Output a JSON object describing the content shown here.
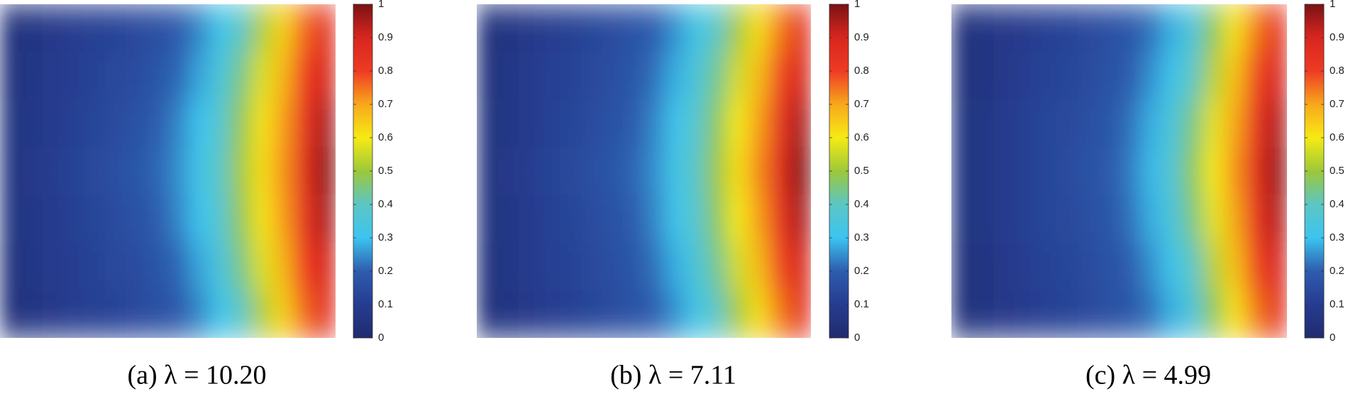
{
  "chart_data": [
    {
      "type": "heatmap",
      "caption": "(a) λ = 10.20",
      "values": [
        [
          0.04,
          0.06,
          0.08,
          0.1,
          0.11,
          0.12,
          0.14,
          0.16,
          0.19,
          0.24,
          0.31,
          0.4,
          0.52,
          0.64,
          0.76,
          0.85
        ],
        [
          0.04,
          0.07,
          0.09,
          0.1,
          0.12,
          0.14,
          0.15,
          0.18,
          0.21,
          0.27,
          0.35,
          0.45,
          0.57,
          0.68,
          0.8,
          0.9
        ],
        [
          0.05,
          0.07,
          0.09,
          0.11,
          0.13,
          0.15,
          0.17,
          0.2,
          0.24,
          0.3,
          0.38,
          0.49,
          0.61,
          0.71,
          0.83,
          0.95
        ],
        [
          0.05,
          0.08,
          0.1,
          0.12,
          0.14,
          0.16,
          0.18,
          0.21,
          0.25,
          0.32,
          0.4,
          0.51,
          0.62,
          0.72,
          0.85,
          0.98
        ],
        [
          0.05,
          0.07,
          0.09,
          0.11,
          0.13,
          0.15,
          0.17,
          0.2,
          0.24,
          0.3,
          0.38,
          0.49,
          0.61,
          0.71,
          0.83,
          0.95
        ],
        [
          0.04,
          0.07,
          0.09,
          0.1,
          0.12,
          0.14,
          0.15,
          0.18,
          0.21,
          0.27,
          0.35,
          0.45,
          0.57,
          0.68,
          0.8,
          0.9
        ],
        [
          0.04,
          0.06,
          0.08,
          0.1,
          0.11,
          0.12,
          0.14,
          0.16,
          0.19,
          0.24,
          0.31,
          0.4,
          0.52,
          0.64,
          0.76,
          0.85
        ]
      ],
      "clim": [
        0,
        1
      ],
      "cticks": [
        0,
        0.1,
        0.2,
        0.3,
        0.4,
        0.5,
        0.6,
        0.7,
        0.8,
        0.9,
        1
      ],
      "colormap": [
        "#202b6e",
        "#263c90",
        "#2e5cae",
        "#3cc4f0",
        "#5cc6c4",
        "#9cc83a",
        "#f6ea14",
        "#f8a81c",
        "#ee3b24",
        "#d8261f",
        "#7a1214"
      ]
    },
    {
      "type": "heatmap",
      "caption": "(b) λ = 7.11",
      "values": [
        [
          0.04,
          0.06,
          0.08,
          0.1,
          0.11,
          0.13,
          0.15,
          0.17,
          0.2,
          0.25,
          0.32,
          0.4,
          0.51,
          0.62,
          0.74,
          0.84
        ],
        [
          0.04,
          0.07,
          0.09,
          0.11,
          0.12,
          0.14,
          0.16,
          0.18,
          0.22,
          0.28,
          0.35,
          0.44,
          0.56,
          0.67,
          0.79,
          0.9
        ],
        [
          0.05,
          0.07,
          0.09,
          0.11,
          0.13,
          0.15,
          0.17,
          0.2,
          0.24,
          0.31,
          0.38,
          0.48,
          0.6,
          0.71,
          0.83,
          0.95
        ],
        [
          0.05,
          0.08,
          0.1,
          0.12,
          0.14,
          0.16,
          0.18,
          0.21,
          0.25,
          0.32,
          0.4,
          0.5,
          0.62,
          0.73,
          0.86,
          0.99
        ],
        [
          0.05,
          0.07,
          0.09,
          0.11,
          0.13,
          0.15,
          0.17,
          0.2,
          0.24,
          0.31,
          0.38,
          0.48,
          0.6,
          0.71,
          0.83,
          0.95
        ],
        [
          0.04,
          0.07,
          0.09,
          0.11,
          0.12,
          0.14,
          0.16,
          0.18,
          0.22,
          0.28,
          0.35,
          0.44,
          0.56,
          0.67,
          0.79,
          0.9
        ],
        [
          0.04,
          0.06,
          0.08,
          0.1,
          0.11,
          0.13,
          0.15,
          0.17,
          0.2,
          0.25,
          0.32,
          0.4,
          0.51,
          0.62,
          0.74,
          0.84
        ]
      ],
      "clim": [
        0,
        1
      ],
      "cticks": [
        0,
        0.1,
        0.2,
        0.3,
        0.4,
        0.5,
        0.6,
        0.7,
        0.8,
        0.9,
        1
      ],
      "colormap": [
        "#202b6e",
        "#263c90",
        "#2e5cae",
        "#3cc4f0",
        "#5cc6c4",
        "#9cc83a",
        "#f6ea14",
        "#f8a81c",
        "#ee3b24",
        "#d8261f",
        "#7a1214"
      ]
    },
    {
      "type": "heatmap",
      "caption": "(c) λ = 4.99",
      "values": [
        [
          0.04,
          0.06,
          0.08,
          0.09,
          0.11,
          0.12,
          0.14,
          0.16,
          0.18,
          0.22,
          0.28,
          0.36,
          0.48,
          0.61,
          0.74,
          0.84
        ],
        [
          0.04,
          0.06,
          0.08,
          0.1,
          0.12,
          0.13,
          0.15,
          0.17,
          0.2,
          0.25,
          0.31,
          0.4,
          0.53,
          0.66,
          0.79,
          0.89
        ],
        [
          0.05,
          0.07,
          0.09,
          0.11,
          0.13,
          0.14,
          0.16,
          0.18,
          0.22,
          0.28,
          0.35,
          0.45,
          0.58,
          0.7,
          0.83,
          0.94
        ],
        [
          0.05,
          0.07,
          0.09,
          0.11,
          0.13,
          0.15,
          0.17,
          0.19,
          0.23,
          0.29,
          0.37,
          0.48,
          0.6,
          0.72,
          0.85,
          0.97
        ],
        [
          0.05,
          0.07,
          0.09,
          0.11,
          0.13,
          0.14,
          0.16,
          0.18,
          0.22,
          0.28,
          0.35,
          0.45,
          0.58,
          0.7,
          0.83,
          0.94
        ],
        [
          0.04,
          0.06,
          0.08,
          0.1,
          0.12,
          0.13,
          0.15,
          0.17,
          0.2,
          0.25,
          0.31,
          0.4,
          0.53,
          0.66,
          0.79,
          0.89
        ],
        [
          0.04,
          0.06,
          0.08,
          0.09,
          0.11,
          0.12,
          0.14,
          0.16,
          0.18,
          0.22,
          0.28,
          0.36,
          0.48,
          0.61,
          0.74,
          0.84
        ]
      ],
      "clim": [
        0,
        1
      ],
      "cticks": [
        0,
        0.1,
        0.2,
        0.3,
        0.4,
        0.5,
        0.6,
        0.7,
        0.8,
        0.9,
        1
      ],
      "colormap": [
        "#202b6e",
        "#263c90",
        "#2e5cae",
        "#3cc4f0",
        "#5cc6c4",
        "#9cc83a",
        "#f6ea14",
        "#f8a81c",
        "#ee3b24",
        "#d8261f",
        "#7a1214"
      ]
    }
  ]
}
